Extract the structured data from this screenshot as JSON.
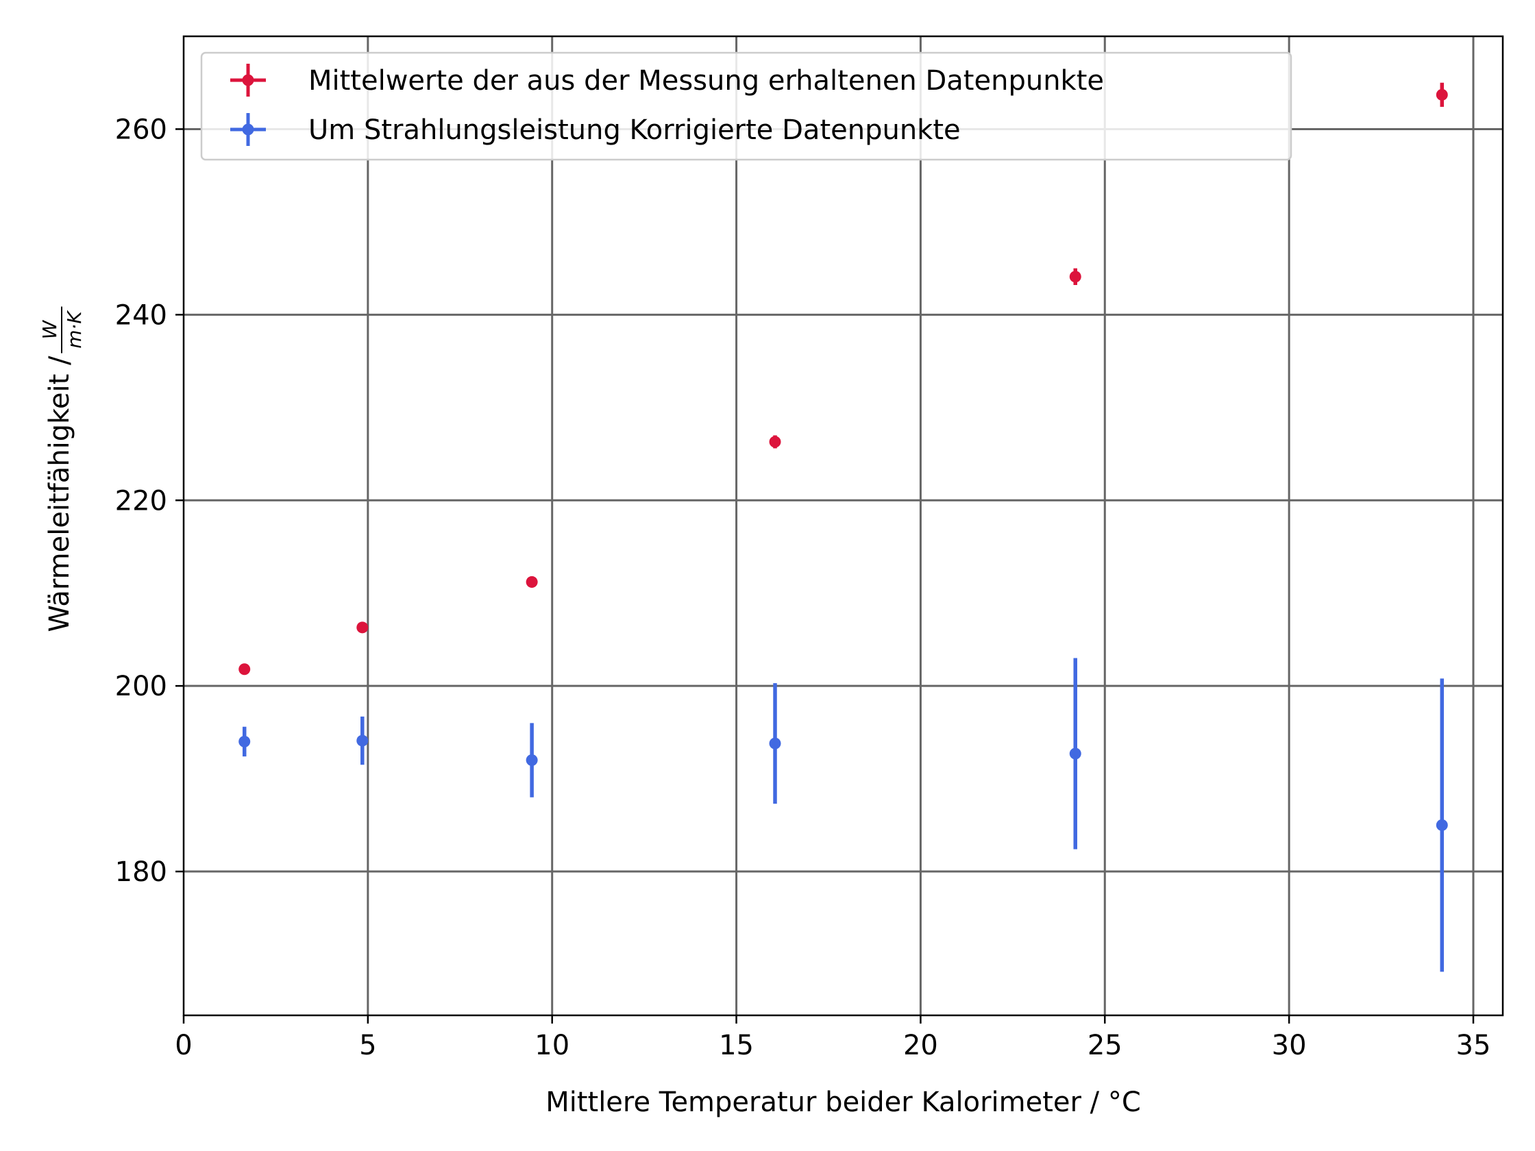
{
  "chart_data": {
    "type": "scatter",
    "xlabel": "Mittlere Temperatur beider Kalorimeter / °C",
    "ylabel": "Wärmeleitfähigkeit / ",
    "ylabel_fraction": {
      "numerator": "W",
      "denominator": "m·K"
    },
    "xlim": [
      0,
      35.8
    ],
    "ylim": [
      164.5,
      270
    ],
    "xticks": [
      0,
      5,
      10,
      15,
      20,
      25,
      30,
      35
    ],
    "yticks": [
      180,
      200,
      220,
      240,
      260
    ],
    "grid": true,
    "legend_position": "upper-left",
    "series": [
      {
        "name": "Mittelwerte der aus der Messung erhaltenen Datenpunkte",
        "color": "#dc143c",
        "points": [
          {
            "x": 1.65,
            "y": 201.8,
            "yerr": 0.4
          },
          {
            "x": 4.85,
            "y": 206.3,
            "yerr": 0.4
          },
          {
            "x": 9.45,
            "y": 211.2,
            "yerr": 0.6
          },
          {
            "x": 16.05,
            "y": 226.3,
            "yerr": 0.7
          },
          {
            "x": 24.2,
            "y": 244.1,
            "yerr": 0.9
          },
          {
            "x": 34.15,
            "y": 263.7,
            "yerr": 1.3
          }
        ]
      },
      {
        "name": "Um Strahlungsleistung Korrigierte Datenpunkte",
        "color": "#4169e1",
        "points": [
          {
            "x": 1.65,
            "y": 194.0,
            "yerr": 1.6
          },
          {
            "x": 4.85,
            "y": 194.1,
            "yerr": 2.6
          },
          {
            "x": 9.45,
            "y": 192.0,
            "yerr": 4.0
          },
          {
            "x": 16.05,
            "y": 193.8,
            "yerr": 6.5
          },
          {
            "x": 24.2,
            "y": 192.7,
            "yerr": 10.3
          },
          {
            "x": 34.15,
            "y": 185.0,
            "yerr": 15.8
          }
        ]
      }
    ]
  }
}
